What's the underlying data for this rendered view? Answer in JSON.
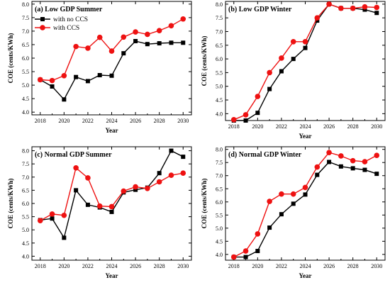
{
  "colors": {
    "no_ccs": "#000000",
    "ccs": "#ee1111"
  },
  "legend": {
    "placement": "top-left of panel (a)",
    "items": [
      {
        "label": "with no CCS",
        "marker": "square",
        "color": "#000000"
      },
      {
        "label": "with CCS",
        "marker": "circle",
        "color": "#ee1111"
      }
    ]
  },
  "chart_data": [
    {
      "type": "line",
      "title": "(a) Low GDP Summer",
      "xlabel": "Year",
      "ylabel": "COE (cents/KWh)",
      "x": [
        2018,
        2019,
        2020,
        2021,
        2022,
        2023,
        2024,
        2025,
        2026,
        2027,
        2028,
        2029,
        2030
      ],
      "xticks": [
        "2018",
        "2020",
        "2022",
        "2024",
        "2026",
        "2028",
        "2030"
      ],
      "yticks": [
        "4.0",
        "4.5",
        "5.0",
        "5.5",
        "6.0",
        "6.5",
        "7.0",
        "7.5",
        "8.0"
      ],
      "xlim": [
        2017.3,
        2030.7
      ],
      "ylim": [
        3.9,
        8.1
      ],
      "grid": false,
      "series": [
        {
          "name": "with no CCS",
          "values": [
            5.2,
            4.95,
            4.47,
            5.3,
            5.15,
            5.37,
            5.35,
            6.18,
            6.63,
            6.52,
            6.55,
            6.57,
            6.57
          ]
        },
        {
          "name": "with CCS",
          "values": [
            5.2,
            5.17,
            5.35,
            6.43,
            6.37,
            6.77,
            6.26,
            6.78,
            6.97,
            6.88,
            7.02,
            7.2,
            7.45
          ]
        }
      ]
    },
    {
      "type": "line",
      "title": "(b) Low GDP Winter",
      "xlabel": "Year",
      "ylabel": "COE (cents/KWh)",
      "x": [
        2018,
        2019,
        2020,
        2021,
        2022,
        2023,
        2024,
        2025,
        2026,
        2027,
        2028,
        2029,
        2030
      ],
      "xticks": [
        "2018",
        "2020",
        "2022",
        "2024",
        "2026",
        "2028",
        "2030"
      ],
      "yticks": [
        "4.0",
        "4.5",
        "5.0",
        "5.5",
        "6.0",
        "6.5",
        "7.0",
        "7.5",
        "8.0"
      ],
      "xlim": [
        2017.3,
        2030.7
      ],
      "ylim": [
        3.75,
        8.1
      ],
      "grid": false,
      "series": [
        {
          "name": "with no CCS",
          "values": [
            3.75,
            3.75,
            4.03,
            4.9,
            5.55,
            6.0,
            6.4,
            7.4,
            8.0,
            7.85,
            7.85,
            7.8,
            7.68
          ]
        },
        {
          "name": "with CCS",
          "values": [
            3.78,
            3.96,
            4.63,
            5.5,
            6.03,
            6.63,
            6.63,
            7.5,
            8.0,
            7.85,
            7.85,
            7.9,
            7.88
          ]
        }
      ]
    },
    {
      "type": "line",
      "title": "(c) Normal GDP Summer",
      "xlabel": "Year",
      "ylabel": "COE (cents/KWh)",
      "x": [
        2018,
        2019,
        2020,
        2021,
        2022,
        2023,
        2024,
        2025,
        2026,
        2027,
        2028,
        2029,
        2030
      ],
      "xticks": [
        "2018",
        "2020",
        "2022",
        "2024",
        "2026",
        "2028",
        "2030"
      ],
      "yticks": [
        "4.0",
        "4.5",
        "5.0",
        "5.5",
        "6.0",
        "6.5",
        "7.0",
        "7.5",
        "8.0"
      ],
      "xlim": [
        2017.3,
        2030.7
      ],
      "ylim": [
        3.85,
        8.15
      ],
      "grid": false,
      "series": [
        {
          "name": "with no CCS",
          "values": [
            5.37,
            5.43,
            4.7,
            6.5,
            5.95,
            5.85,
            5.68,
            6.42,
            6.52,
            6.6,
            7.15,
            8.0,
            7.77
          ]
        },
        {
          "name": "with CCS",
          "values": [
            5.35,
            5.6,
            5.55,
            7.35,
            6.97,
            5.9,
            5.88,
            6.47,
            6.63,
            6.57,
            6.82,
            7.07,
            7.15
          ]
        }
      ]
    },
    {
      "type": "line",
      "title": "(d) Normal GDP Winter",
      "xlabel": "Year",
      "ylabel": "COE (cents/KWh)",
      "x": [
        2018,
        2019,
        2020,
        2021,
        2022,
        2023,
        2024,
        2025,
        2026,
        2027,
        2028,
        2029,
        2030
      ],
      "xticks": [
        "2018",
        "2020",
        "2022",
        "2024",
        "2026",
        "2028",
        "2030"
      ],
      "yticks": [
        "4.0",
        "4.5",
        "5.0",
        "5.5",
        "6.0",
        "6.5",
        "7.0",
        "7.5",
        "8.0"
      ],
      "xlim": [
        2017.3,
        2030.7
      ],
      "ylim": [
        3.78,
        8.1
      ],
      "grid": false,
      "series": [
        {
          "name": "with no CCS",
          "values": [
            3.9,
            3.9,
            4.13,
            5.02,
            5.53,
            5.93,
            6.28,
            7.03,
            7.52,
            7.35,
            7.28,
            7.22,
            7.07
          ]
        },
        {
          "name": "with CCS",
          "values": [
            3.9,
            4.13,
            4.78,
            6.02,
            6.3,
            6.3,
            6.55,
            7.33,
            7.88,
            7.75,
            7.57,
            7.53,
            7.77
          ]
        }
      ]
    }
  ]
}
